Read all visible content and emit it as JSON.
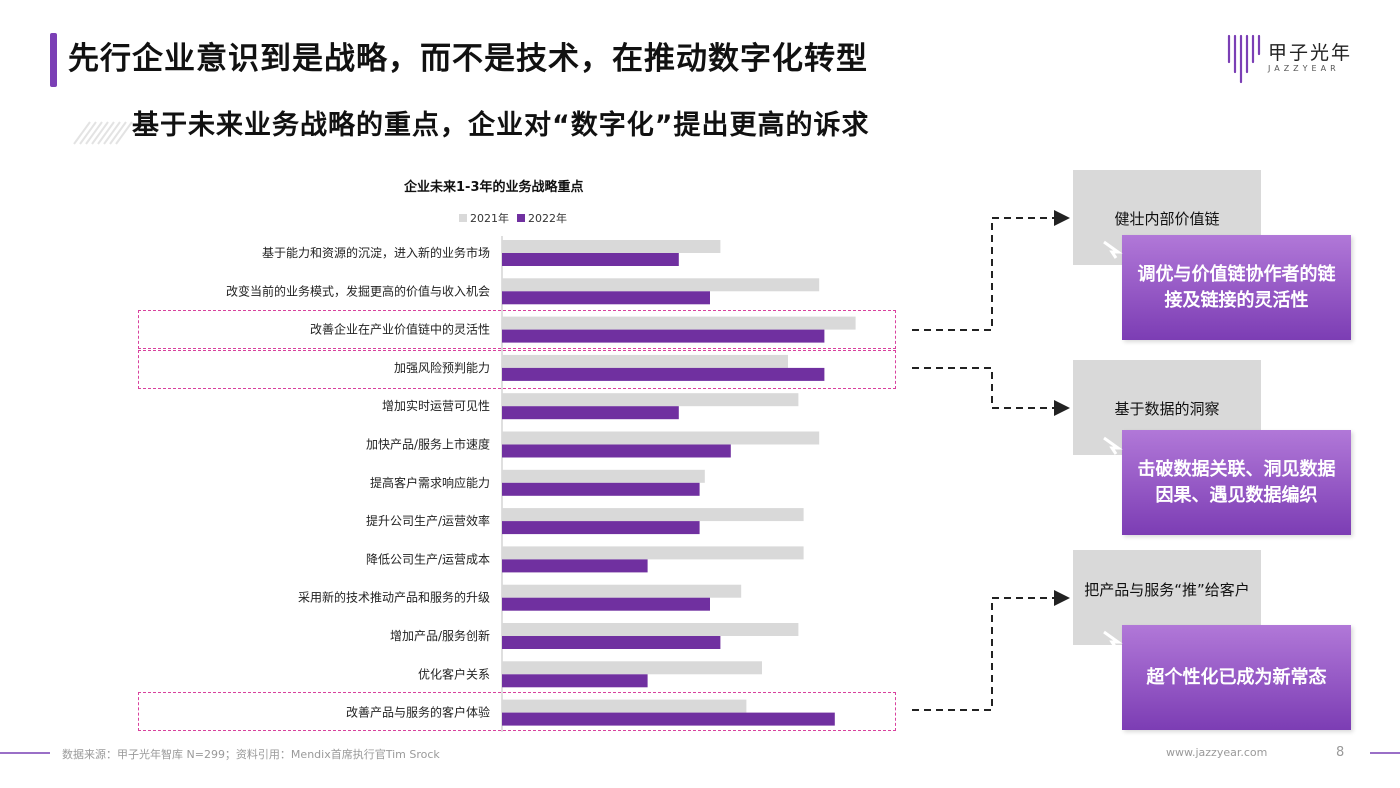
{
  "header": {
    "title": "先行企业意识到是战略，而不是技术，在推动数字化转型",
    "subtitle": "基于未来业务战略的重点，企业对“数字化”提出更高的诉求"
  },
  "brand": {
    "name": "甲子光年",
    "sub": "JAZZYEAR",
    "accent": "#7b3fb5"
  },
  "chart_data": {
    "type": "bar",
    "orientation": "horizontal",
    "title": "企业未来1-3年的业务战略重点",
    "legend_position": "top",
    "grid": false,
    "categories": [
      "基于能力和资源的沉淀，进入新的业务市场",
      "改变当前的业务模式，发掘更高的价值与收入机会",
      "改善企业在产业价值链中的灵活性",
      "加强风险预判能力",
      "增加实时运营可见性",
      "加快产品/服务上市速度",
      "提高客户需求响应能力",
      "提升公司生产/运营效率",
      "降低公司生产/运营成本",
      "采用新的技术推动产品和服务的升级",
      "增加产品/服务创新",
      "优化客户关系",
      "改善产品与服务的客户体验"
    ],
    "series": [
      {
        "name": "2021年",
        "color": "#d9d9d9",
        "values": [
          42,
          61,
          68,
          55,
          57,
          61,
          39,
          58,
          58,
          46,
          57,
          50,
          47
        ]
      },
      {
        "name": "2022年",
        "color": "#7030a0",
        "values": [
          34,
          40,
          62,
          62,
          34,
          44,
          38,
          38,
          28,
          40,
          42,
          28,
          64
        ]
      }
    ],
    "xlim": [
      0,
      100
    ]
  },
  "highlights": {
    "color": "#d9419e",
    "groups": [
      {
        "need": "健壮内部价值链",
        "outcome": "调优与价值链协作者的链接及链接的灵活性"
      },
      {
        "need": "基于数据的洞察",
        "outcome": "击破数据关联、洞见数据因果、遇见数据编织"
      },
      {
        "need": "把产品与服务“推”给客户",
        "outcome": "超个性化已成为新常态"
      }
    ]
  },
  "footer": {
    "source": "数据来源：甲子光年智库 N=299；资料引用：Mendix首席执行官Tim Srock",
    "website": "www.jazzyear.com",
    "page": "8"
  }
}
